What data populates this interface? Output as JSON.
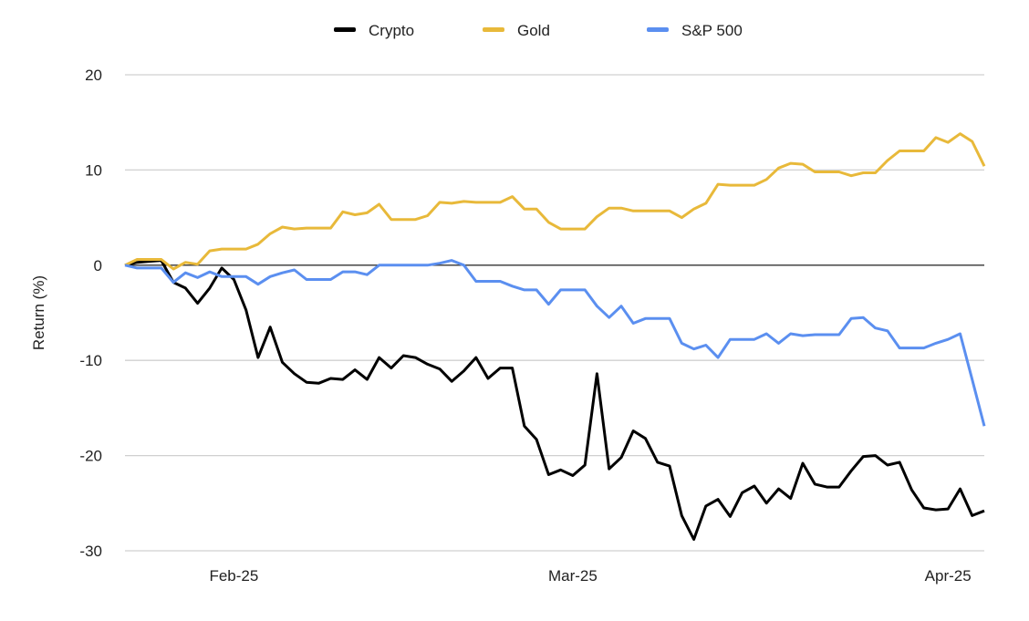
{
  "chart_data": {
    "type": "line",
    "title": "",
    "xlabel": "",
    "ylabel": "Return (%)",
    "ylim": [
      -30,
      20
    ],
    "yticks": [
      20,
      10,
      0,
      -10,
      -20,
      -30
    ],
    "ytick_labels": [
      "20",
      "10",
      "0",
      "-10",
      "-20",
      "-30"
    ],
    "xticks": [
      {
        "date": "2025-02-01",
        "label": "Feb-25"
      },
      {
        "date": "2025-03-01",
        "label": "Mar-25"
      },
      {
        "date": "2025-04-01",
        "label": "Apr-25"
      }
    ],
    "grid": true,
    "legend_position": "top",
    "x": [
      "2025-01-23",
      "2025-01-24",
      "2025-01-25",
      "2025-01-26",
      "2025-01-27",
      "2025-01-28",
      "2025-01-29",
      "2025-01-30",
      "2025-01-31",
      "2025-02-01",
      "2025-02-02",
      "2025-02-03",
      "2025-02-04",
      "2025-02-05",
      "2025-02-06",
      "2025-02-07",
      "2025-02-08",
      "2025-02-09",
      "2025-02-10",
      "2025-02-11",
      "2025-02-12",
      "2025-02-13",
      "2025-02-14",
      "2025-02-15",
      "2025-02-16",
      "2025-02-17",
      "2025-02-18",
      "2025-02-19",
      "2025-02-20",
      "2025-02-21",
      "2025-02-22",
      "2025-02-23",
      "2025-02-24",
      "2025-02-25",
      "2025-02-26",
      "2025-02-27",
      "2025-02-28",
      "2025-03-01",
      "2025-03-02",
      "2025-03-03",
      "2025-03-04",
      "2025-03-05",
      "2025-03-06",
      "2025-03-07",
      "2025-03-08",
      "2025-03-09",
      "2025-03-10",
      "2025-03-11",
      "2025-03-12",
      "2025-03-13",
      "2025-03-14",
      "2025-03-15",
      "2025-03-16",
      "2025-03-17",
      "2025-03-18",
      "2025-03-19",
      "2025-03-20",
      "2025-03-21",
      "2025-03-22",
      "2025-03-23",
      "2025-03-24",
      "2025-03-25",
      "2025-03-26",
      "2025-03-27",
      "2025-03-28",
      "2025-03-29",
      "2025-03-30",
      "2025-03-31",
      "2025-04-01",
      "2025-04-02",
      "2025-04-03",
      "2025-04-04"
    ],
    "series": [
      {
        "name": "Crypto",
        "color": "#000000",
        "values": [
          0,
          0.3,
          0.4,
          0.5,
          -1.8,
          -2.4,
          -4,
          -2.4,
          -0.3,
          -1.5,
          -4.7,
          -9.7,
          -6.5,
          -10.2,
          -11.4,
          -12.3,
          -12.4,
          -11.9,
          -12,
          -11,
          -12,
          -9.7,
          -10.8,
          -9.5,
          -9.7,
          -10.4,
          -10.9,
          -12.2,
          -11.1,
          -9.7,
          -11.9,
          -10.8,
          -10.8,
          -16.9,
          -18.3,
          -22,
          -21.5,
          -22.1,
          -21,
          -11.4,
          -21.4,
          -20.2,
          -17.4,
          -18.2,
          -20.7,
          -21.1,
          -26.3,
          -28.8,
          -25.3,
          -24.6,
          -26.4,
          -23.9,
          -23.2,
          -25,
          -23.5,
          -24.5,
          -20.8,
          -23,
          -23.3,
          -23.3,
          -21.6,
          -20.1,
          -20,
          -21,
          -20.7,
          -23.6,
          -25.5,
          -25.7,
          -25.6,
          -23.5,
          -26.3,
          -25.8
        ]
      },
      {
        "name": "Gold",
        "color": "#E8B93A",
        "values": [
          0,
          0.6,
          0.6,
          0.6,
          -0.4,
          0.3,
          0.1,
          1.5,
          1.7,
          1.7,
          1.7,
          2.2,
          3.3,
          4,
          3.8,
          3.9,
          3.9,
          3.9,
          5.6,
          5.3,
          5.5,
          6.4,
          4.8,
          4.8,
          4.8,
          5.2,
          6.6,
          6.5,
          6.7,
          6.6,
          6.6,
          6.6,
          7.2,
          5.9,
          5.9,
          4.5,
          3.8,
          3.8,
          3.8,
          5.1,
          6,
          6,
          5.7,
          5.7,
          5.7,
          5.7,
          5,
          5.9,
          6.5,
          8.5,
          8.4,
          8.4,
          8.4,
          9,
          10.2,
          10.7,
          10.6,
          9.8,
          9.8,
          9.8,
          9.4,
          9.7,
          9.7,
          11,
          12,
          12,
          12,
          13.4,
          12.9,
          13.8,
          13,
          10.4
        ]
      },
      {
        "name": "S&P 500",
        "color": "#5B8FF0",
        "values": [
          0,
          -0.3,
          -0.3,
          -0.3,
          -1.8,
          -0.8,
          -1.3,
          -0.7,
          -1.2,
          -1.2,
          -1.2,
          -2,
          -1.2,
          -0.8,
          -0.5,
          -1.5,
          -1.5,
          -1.5,
          -0.7,
          -0.7,
          -1,
          0,
          0,
          0,
          0,
          0,
          0.2,
          0.5,
          0,
          -1.7,
          -1.7,
          -1.7,
          -2.2,
          -2.6,
          -2.6,
          -4.1,
          -2.6,
          -2.6,
          -2.6,
          -4.3,
          -5.5,
          -4.3,
          -6.1,
          -5.6,
          -5.6,
          -5.6,
          -8.2,
          -8.8,
          -8.4,
          -9.7,
          -7.8,
          -7.8,
          -7.8,
          -7.2,
          -8.2,
          -7.2,
          -7.4,
          -7.3,
          -7.3,
          -7.3,
          -5.6,
          -5.5,
          -6.6,
          -6.9,
          -8.7,
          -8.7,
          -8.7,
          -8.2,
          -7.8,
          -7.2,
          -12,
          -16.9
        ]
      }
    ]
  }
}
